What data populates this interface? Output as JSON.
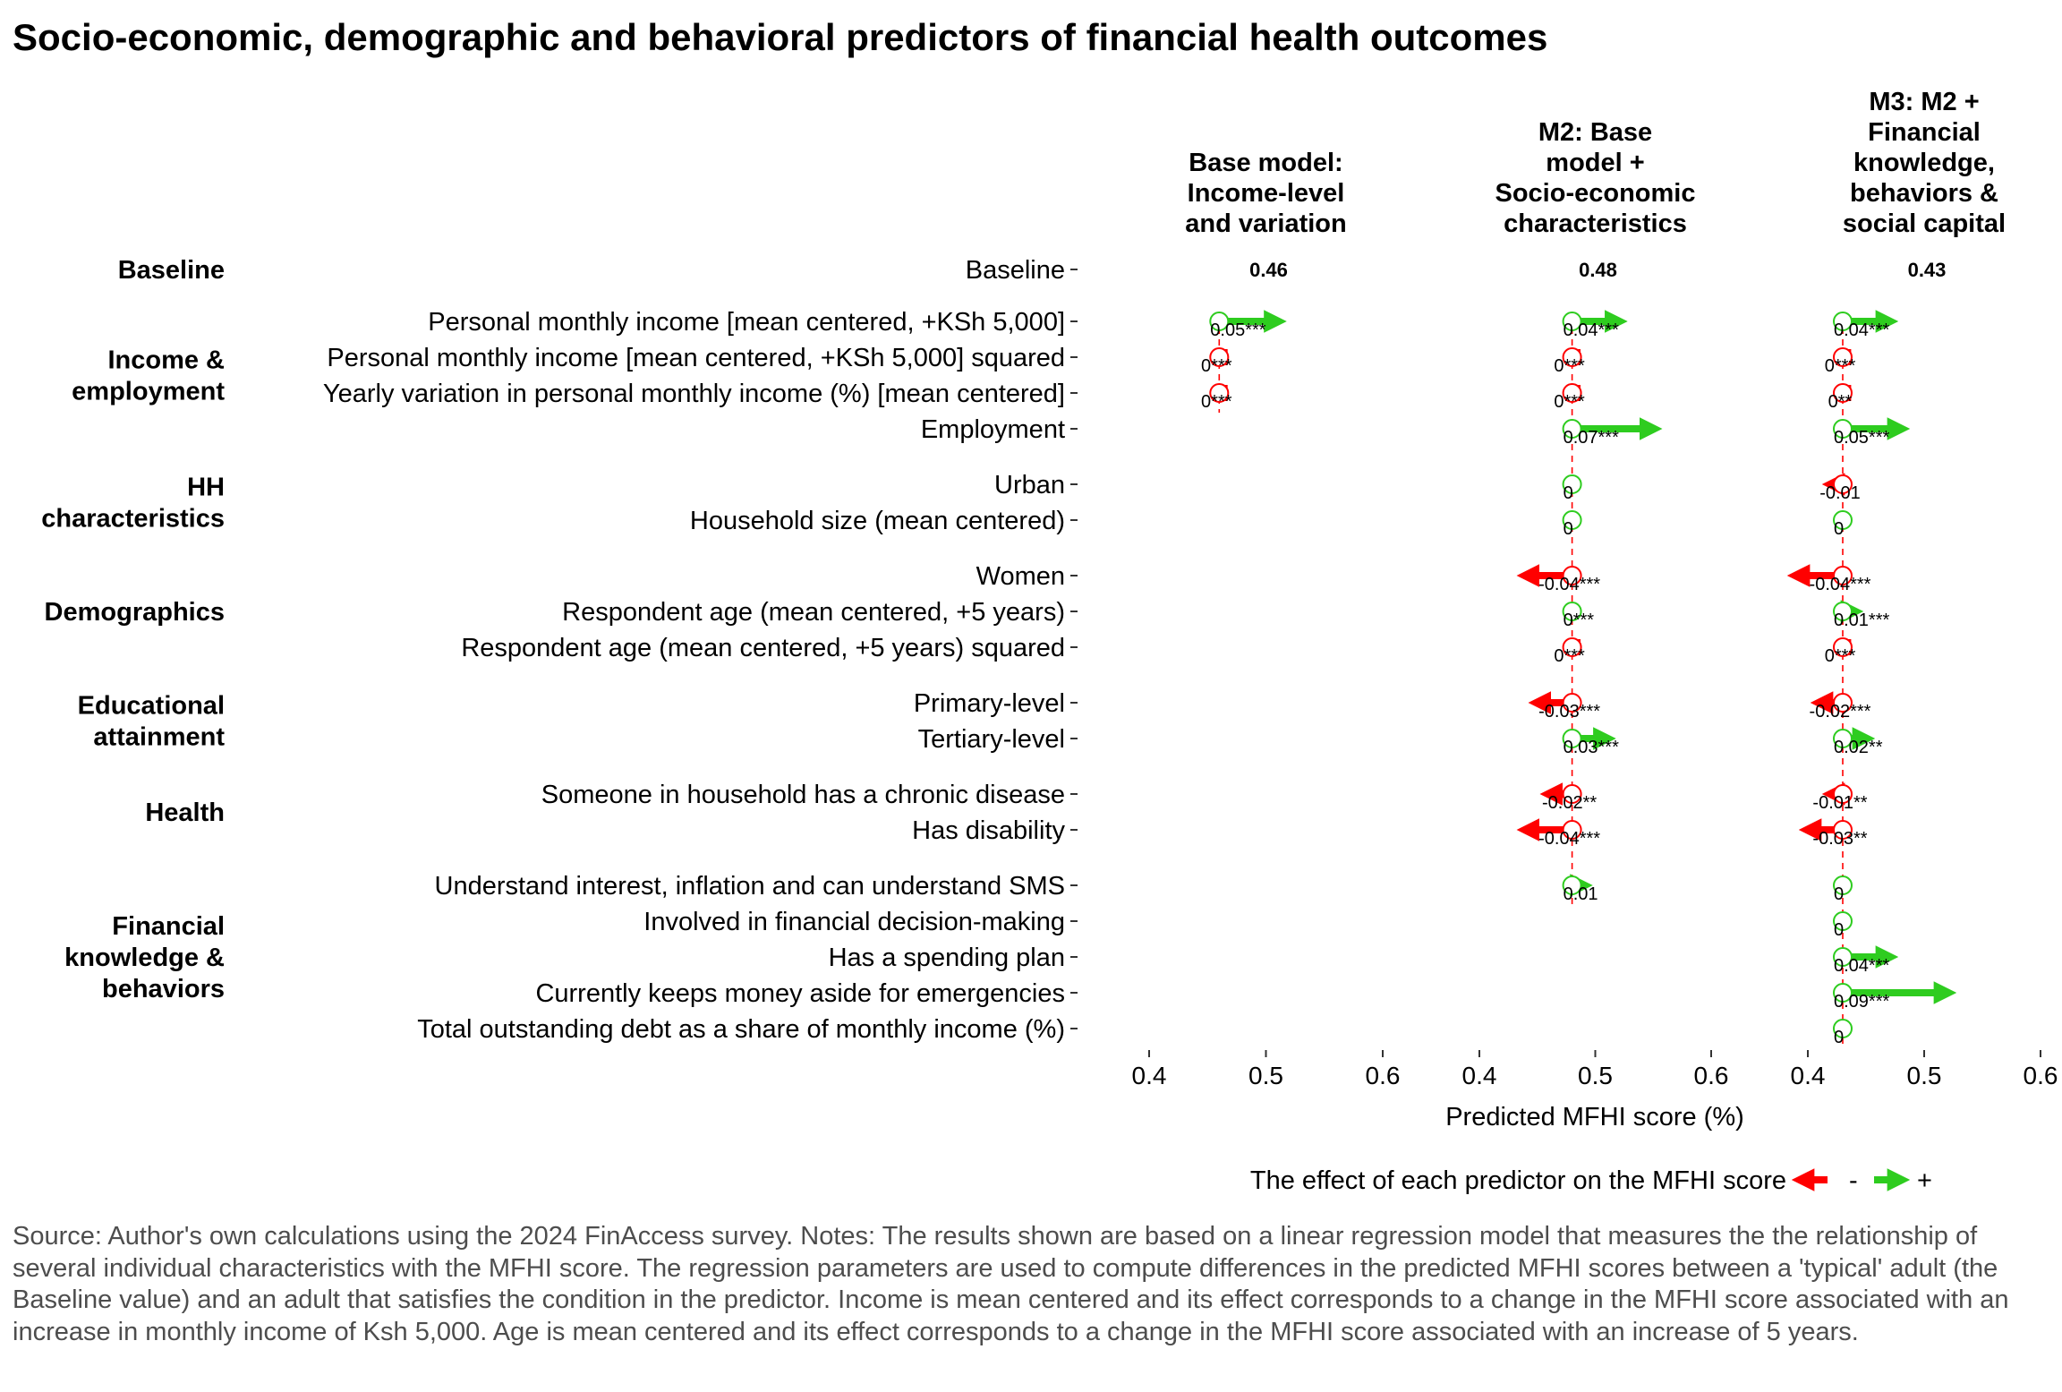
{
  "title": "Socio-economic, demographic and behavioral predictors of financial health outcomes",
  "source_note": "Source: Author's own calculations using the 2024 FinAccess survey. Notes: The results shown are based on a linear regression model that measures the the relationship of several individual characteristics with the MFHI score. The regression parameters are used to compute differences in the predicted MFHI scores between a 'typical' adult (the Baseline value) and an adult that satisfies the condition in the predictor. Income is mean centered and its effect corresponds to a change in the MFHI score associated with an increase in monthly income of Ksh 5,000. Age is mean centered and its effect corresponds to a change in the MFHI score associated with an increase of 5 years.",
  "legend": {
    "label": "The effect of each predictor on the MFHI score",
    "negative": "-",
    "positive": "+"
  },
  "colors": {
    "negative": "#ff0000",
    "positive": "#2ecc1f",
    "baseline_line": "#ff0000",
    "text": "#000000",
    "note": "#4d4d4d"
  },
  "chart_data": {
    "type": "arrow-forest",
    "xlabel": "Predicted MFHI score (%)",
    "xlim": [
      0.4,
      0.6
    ],
    "xticks": [
      "0.4",
      "0.5",
      "0.6"
    ],
    "groups": [
      {
        "name": "Baseline",
        "rows": [
          "Baseline"
        ]
      },
      {
        "name": "Income &\nemployment",
        "rows": [
          "Personal monthly income [mean centered, +KSh 5,000]",
          "Personal monthly income [mean centered, +KSh 5,000] squared",
          "Yearly variation in personal monthly income (%) [mean centered]",
          "Employment"
        ]
      },
      {
        "name": "HH\ncharacteristics",
        "rows": [
          "Urban",
          "Household size (mean centered)"
        ]
      },
      {
        "name": "Demographics",
        "rows": [
          "Women",
          "Respondent age (mean centered, +5 years)",
          "Respondent age (mean centered, +5 years) squared"
        ]
      },
      {
        "name": "Educational\nattainment",
        "rows": [
          "Primary-level",
          "Tertiary-level"
        ]
      },
      {
        "name": "Health",
        "rows": [
          "Someone in household has a chronic disease",
          "Has disability"
        ]
      },
      {
        "name": "Financial\nknowledge &\nbehaviors",
        "rows": [
          "Understand interest, inflation and can understand SMS",
          "Involved in financial decision-making",
          "Has a spending plan",
          "Currently keeps money aside for emergencies",
          "Total outstanding debt as a share of monthly income (%)"
        ]
      }
    ],
    "panels": [
      {
        "title": "Base model:\nIncome-level\nand variation",
        "baseline": 0.46,
        "baseline_label": "0.46",
        "effects": [
          {
            "row": "Personal monthly income [mean centered, +KSh 5,000]",
            "value": 0.05,
            "label": "0.05***"
          },
          {
            "row": "Personal monthly income [mean centered, +KSh 5,000] squared",
            "value": -0.002,
            "label": "0***"
          },
          {
            "row": "Yearly variation in personal monthly income (%) [mean centered]",
            "value": -0.002,
            "label": "0***"
          }
        ]
      },
      {
        "title": "M2: Base\nmodel +\nSocio-economic\ncharacteristics",
        "baseline": 0.48,
        "baseline_label": "0.48",
        "effects": [
          {
            "row": "Personal monthly income [mean centered, +KSh 5,000]",
            "value": 0.04,
            "label": "0.04***"
          },
          {
            "row": "Personal monthly income [mean centered, +KSh 5,000] squared",
            "value": -0.002,
            "label": "0***"
          },
          {
            "row": "Yearly variation in personal monthly income (%) [mean centered]",
            "value": -0.002,
            "label": "0***"
          },
          {
            "row": "Employment",
            "value": 0.07,
            "label": "0.07***"
          },
          {
            "row": "Urban",
            "value": 0.0,
            "label": "0"
          },
          {
            "row": "Household size (mean centered)",
            "value": 0.0,
            "label": "0"
          },
          {
            "row": "Women",
            "value": -0.04,
            "label": "-0.04***"
          },
          {
            "row": "Respondent age (mean centered, +5 years)",
            "value": 0.0,
            "label": "0***"
          },
          {
            "row": "Respondent age (mean centered, +5 years) squared",
            "value": -0.002,
            "label": "0***"
          },
          {
            "row": "Primary-level",
            "value": -0.03,
            "label": "-0.03***"
          },
          {
            "row": "Tertiary-level",
            "value": 0.03,
            "label": "0.03***"
          },
          {
            "row": "Someone in household has a chronic disease",
            "value": -0.02,
            "label": "-0.02**"
          },
          {
            "row": "Has disability",
            "value": -0.04,
            "label": "-0.04***"
          },
          {
            "row": "Understand interest, inflation and can understand SMS",
            "value": 0.01,
            "label": "0.01"
          }
        ]
      },
      {
        "title": "M3: M2 +\nFinancial\nknowledge,\nbehaviors &\nsocial capital",
        "baseline": 0.43,
        "baseline_label": "0.43",
        "effects": [
          {
            "row": "Personal monthly income [mean centered, +KSh 5,000]",
            "value": 0.04,
            "label": "0.04***"
          },
          {
            "row": "Personal monthly income [mean centered, +KSh 5,000] squared",
            "value": -0.002,
            "label": "0***"
          },
          {
            "row": "Yearly variation in personal monthly income (%) [mean centered]",
            "value": -0.002,
            "label": "0**"
          },
          {
            "row": "Employment",
            "value": 0.05,
            "label": "0.05***"
          },
          {
            "row": "Urban",
            "value": -0.01,
            "label": "-0.01"
          },
          {
            "row": "Household size (mean centered)",
            "value": 0.0,
            "label": "0"
          },
          {
            "row": "Women",
            "value": -0.04,
            "label": "-0.04***"
          },
          {
            "row": "Respondent age (mean centered, +5 years)",
            "value": 0.01,
            "label": "0.01***"
          },
          {
            "row": "Respondent age (mean centered, +5 years) squared",
            "value": -0.002,
            "label": "0***"
          },
          {
            "row": "Primary-level",
            "value": -0.02,
            "label": "-0.02***"
          },
          {
            "row": "Tertiary-level",
            "value": 0.02,
            "label": "0.02**"
          },
          {
            "row": "Someone in household has a chronic disease",
            "value": -0.01,
            "label": "-0.01**"
          },
          {
            "row": "Has disability",
            "value": -0.03,
            "label": "-0.03**"
          },
          {
            "row": "Understand interest, inflation and can understand SMS",
            "value": 0.0,
            "label": "0"
          },
          {
            "row": "Involved in financial decision-making",
            "value": 0.0,
            "label": "0"
          },
          {
            "row": "Has a spending plan",
            "value": 0.04,
            "label": "0.04***"
          },
          {
            "row": "Currently keeps money aside for emergencies",
            "value": 0.09,
            "label": "0.09***"
          },
          {
            "row": "Total outstanding debt as a share of monthly income (%)",
            "value": 0.0,
            "label": "0"
          }
        ]
      }
    ]
  }
}
